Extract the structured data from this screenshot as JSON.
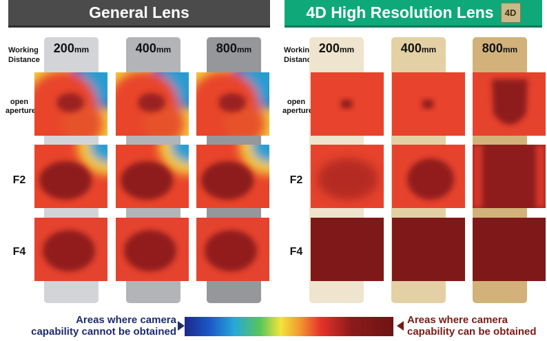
{
  "general_header": "General Lens",
  "hr_header": "4D High Resolution Lens",
  "hr_badge": "4D",
  "working_distance_label": [
    "Working",
    "Distance"
  ],
  "distances": [
    {
      "num": "200",
      "unit": "mm"
    },
    {
      "num": "400",
      "unit": "mm"
    },
    {
      "num": "800",
      "unit": "mm"
    }
  ],
  "apertures": [
    {
      "lines": [
        "open",
        "aperture"
      ]
    },
    {
      "lines": [
        "F2"
      ]
    },
    {
      "lines": [
        "F4"
      ]
    }
  ],
  "colors": {
    "general_strips": [
      "#d3d4d8",
      "#b3b4b8",
      "#96979b"
    ],
    "hr_strips": [
      "#efe4cd",
      "#e3d1a5",
      "#d2b27a"
    ]
  },
  "legend": {
    "left": [
      "Areas where camera",
      "capability cannot be obtained"
    ],
    "right": [
      "Areas where camera",
      "capability can be obtained"
    ]
  }
}
